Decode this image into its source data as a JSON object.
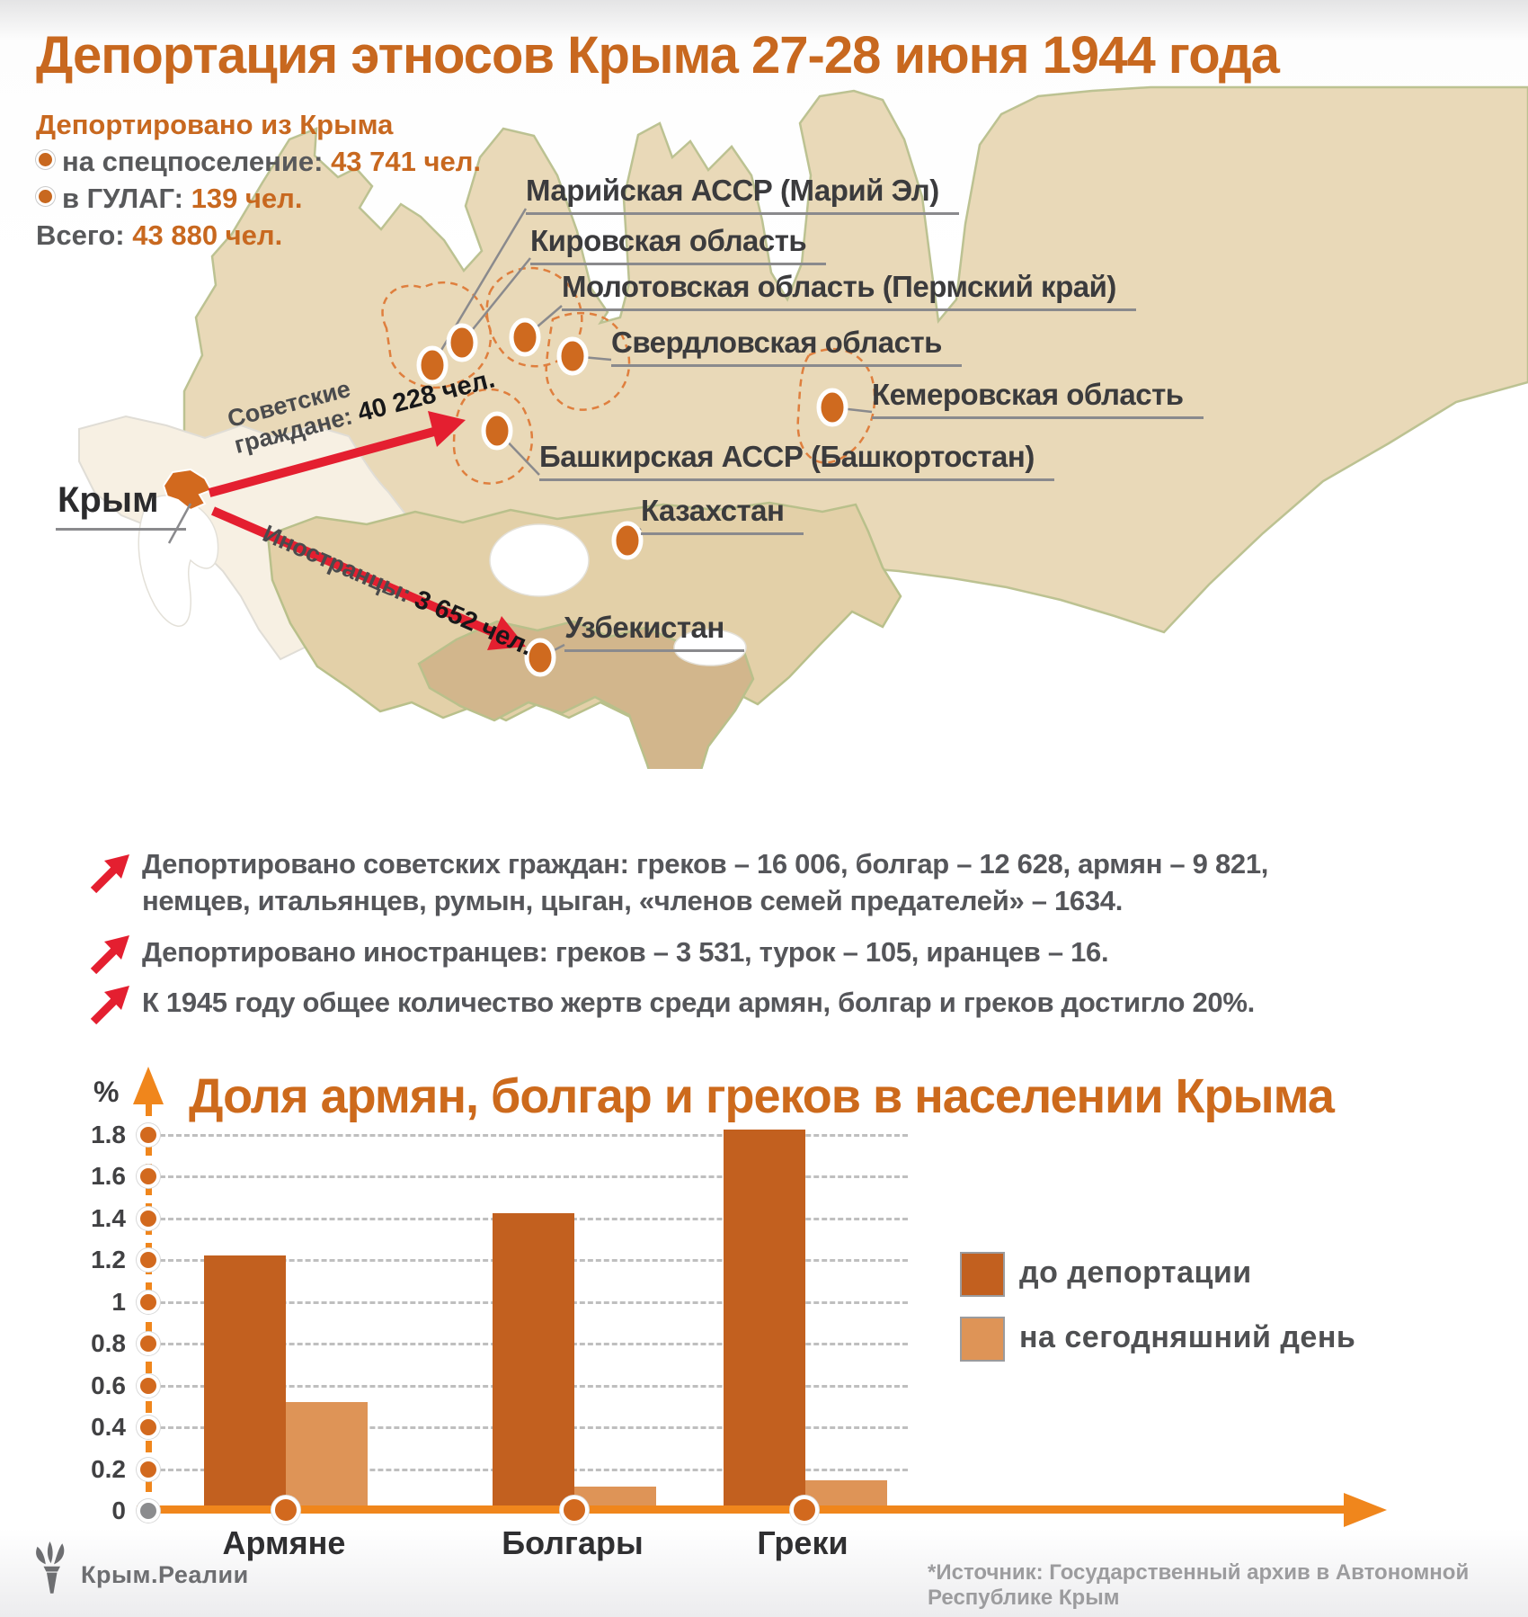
{
  "title": "Депортация этносов Крыма 27-28 июня 1944 года",
  "stats": {
    "heading": "Депортировано из Крыма",
    "items": [
      {
        "label": "на спецпоселение: ",
        "value": "43 741 чел."
      },
      {
        "label": "в ГУЛАГ: ",
        "value": "139 чел."
      }
    ],
    "total_label": "Всего: ",
    "total_value": "43 880 чел."
  },
  "map": {
    "crimea_label": "Крым",
    "regions": [
      {
        "name": "Марийская АССР (Марий Эл)"
      },
      {
        "name": "Кировская область"
      },
      {
        "name": "Молотовская область (Пермский край)"
      },
      {
        "name": "Свердловская область"
      },
      {
        "name": "Кемеровская область"
      },
      {
        "name": "Башкирская АССР (Башкортостан)"
      },
      {
        "name": "Казахстан"
      },
      {
        "name": "Узбекистан"
      }
    ],
    "flows": [
      {
        "line1": "Советские",
        "line2_label": "граждане: ",
        "line2_value": "40 228 чел."
      },
      {
        "label": "Иностранцы: ",
        "value": "3 652 чел."
      }
    ]
  },
  "bullets": [
    "Депортировано советских граждан: греков – 16 006, болгар – 12 628, армян – 9 821, немцев, итальянцев, румын, цыган, «членов семей предателей» – 1634.",
    "Депортировано иностранцев: греков – 3 531, турок – 105, иранцев – 16.",
    "К 1945 году общее количество жертв среди армян, болгар и греков достигло 20%."
  ],
  "chart_data": {
    "type": "bar",
    "title": "Доля армян, болгар и греков в населении Крыма",
    "ylabel": "%",
    "categories": [
      "Армяне",
      "Болгары",
      "Греки"
    ],
    "series": [
      {
        "name": "до депортации",
        "color": "#c2601f",
        "values": [
          1.2,
          1.4,
          1.8
        ]
      },
      {
        "name": "на сегодняшний день",
        "color": "#de9457",
        "values": [
          0.5,
          0.1,
          0.13
        ]
      }
    ],
    "ylim": [
      0,
      1.8
    ],
    "yticks": [
      "1.8",
      "1.6",
      "1.4",
      "1.2",
      "1",
      "0.8",
      "0.6",
      "0.4",
      "0.2",
      "0"
    ],
    "grid": true,
    "legend_position": "right"
  },
  "footer": {
    "logo_text": "Крым.Реалии",
    "source": "*Источник: Государственный архив в Автономной Республике Крым"
  },
  "colors": {
    "accent_orange": "#c8681f",
    "axis_orange": "#f0861c",
    "arrow_red": "#e41f30",
    "map_base": "#e9d9b8",
    "map_light": "#f7f0e3",
    "map_south": "#e3d0a8",
    "map_uzbek": "#d2b68c"
  }
}
